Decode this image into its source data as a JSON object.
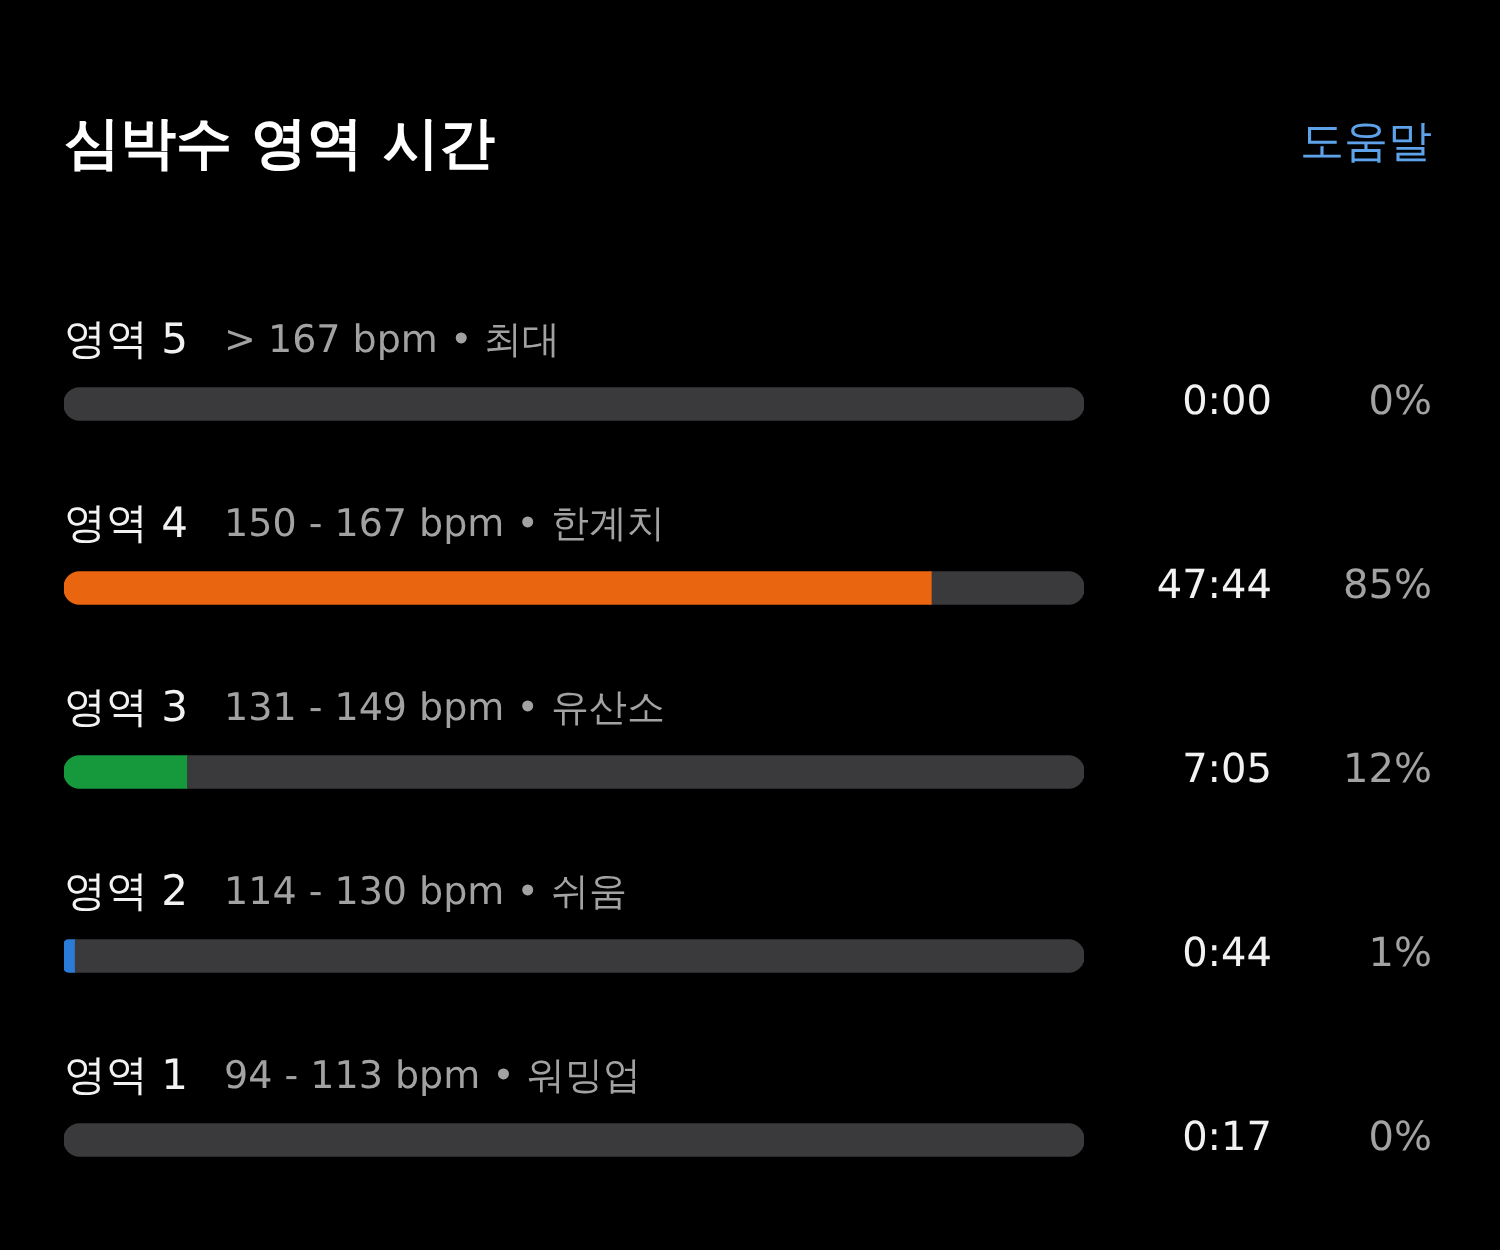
{
  "chart_data": {
    "type": "bar",
    "orientation": "horizontal",
    "stacked": true,
    "title": "심박수 영역 시간",
    "categories": [
      "영역 5",
      "영역 4",
      "영역 3",
      "영역 2",
      "영역 1"
    ],
    "series": [
      {
        "colors": [
          null,
          "#e9650f",
          "#16993d",
          "#2b7bd8",
          null
        ],
        "values": [
          0,
          85,
          12,
          1,
          0
        ],
        "value_labels": [
          "0%",
          "85%",
          "12%",
          "1%",
          "0%"
        ]
      },
      {
        "color": "#3a3a3c",
        "values": [
          100,
          15,
          88,
          99,
          100
        ]
      }
    ],
    "xlim": [
      0,
      100
    ],
    "tick_labels": "y",
    "annotations": [
      "> 167 bpm • 최대",
      "0:00",
      "150 - 167 bpm • 한계치",
      "47:44",
      "131 - 149 bpm • 유산소",
      "7:05",
      "114 - 130 bpm • 쉬움",
      "0:44",
      "94 - 113 bpm • 워밍업",
      "0:17",
      "도움말"
    ]
  }
}
